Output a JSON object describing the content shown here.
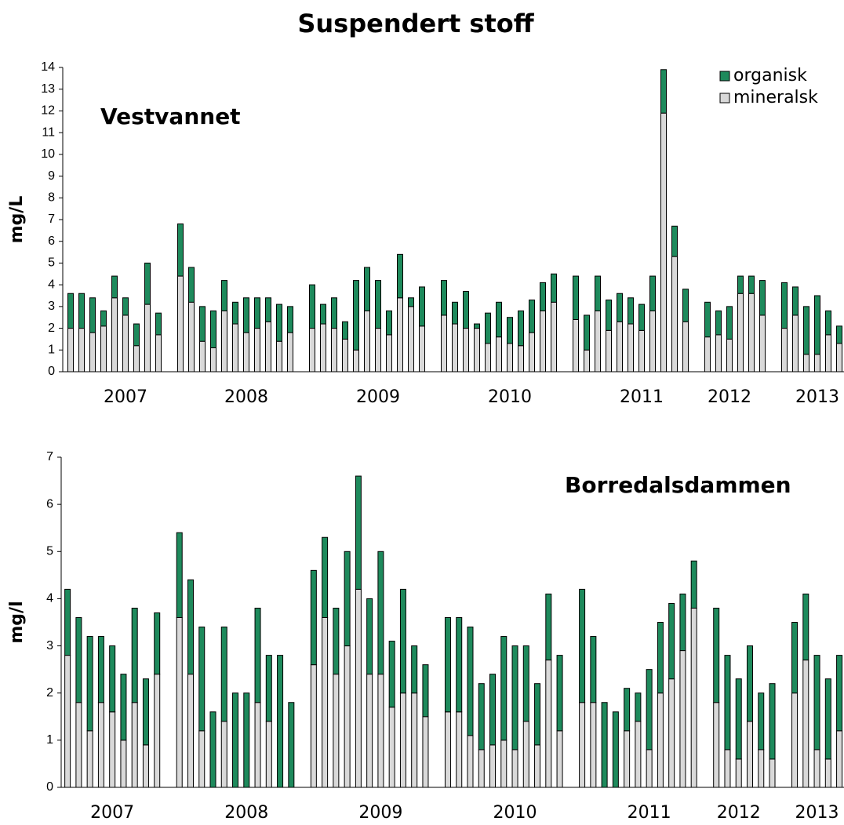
{
  "title": "Suspendert stoff",
  "chart_data": [
    {
      "type": "bar",
      "stacked": true,
      "annotation": "Vestvannet",
      "ylabel": "mg/L",
      "legend": "upper right",
      "ylim": [
        0,
        14
      ],
      "yticks": [
        0,
        1,
        2,
        3,
        4,
        5,
        6,
        7,
        8,
        9,
        10,
        11,
        12,
        13,
        14
      ],
      "categories": [
        null,
        null,
        null,
        null,
        null,
        "2007",
        null,
        null,
        null,
        null,
        null,
        null,
        null,
        null,
        null,
        null,
        "2008",
        null,
        null,
        null,
        null,
        null,
        null,
        null,
        null,
        null,
        null,
        null,
        "2009",
        null,
        null,
        null,
        null,
        null,
        null,
        null,
        null,
        null,
        null,
        null,
        "2010",
        null,
        null,
        null,
        null,
        null,
        null,
        null,
        null,
        null,
        null,
        null,
        "2011",
        null,
        null,
        null,
        null,
        null,
        null,
        null,
        "2012",
        null,
        null,
        null,
        null,
        null,
        null,
        null,
        "2013",
        null,
        null
      ],
      "series": [
        {
          "name": "mineralsk",
          "color": "#d9d9d9",
          "values": [
            2.0,
            2.0,
            1.8,
            2.1,
            3.4,
            2.6,
            1.2,
            3.1,
            1.7,
            null,
            4.4,
            3.2,
            1.4,
            1.1,
            2.8,
            2.2,
            1.8,
            2.0,
            2.3,
            1.4,
            1.8,
            null,
            2.0,
            2.2,
            2.0,
            1.5,
            1.0,
            2.8,
            2.0,
            1.7,
            3.4,
            3.0,
            2.1,
            null,
            2.6,
            2.2,
            2.0,
            2.0,
            1.3,
            1.6,
            1.3,
            1.2,
            1.8,
            2.8,
            3.2,
            null,
            2.4,
            1.0,
            2.8,
            1.9,
            2.3,
            2.2,
            1.9,
            2.8,
            11.9,
            5.3,
            2.3,
            null,
            1.6,
            1.7,
            1.5,
            3.6,
            3.6,
            2.6,
            null,
            2.0,
            2.6,
            0.8,
            0.8,
            1.7,
            1.3
          ]
        },
        {
          "name": "organisk",
          "color": "#1e8a5c",
          "values": [
            1.6,
            1.6,
            1.6,
            0.7,
            1.0,
            0.8,
            1.0,
            1.9,
            1.0,
            null,
            2.4,
            1.6,
            1.6,
            1.7,
            1.4,
            1.0,
            1.6,
            1.4,
            1.1,
            1.7,
            1.2,
            null,
            2.0,
            0.9,
            1.4,
            0.8,
            3.2,
            2.0,
            2.2,
            1.1,
            2.0,
            0.4,
            1.8,
            null,
            1.6,
            1.0,
            1.7,
            0.2,
            1.4,
            1.6,
            1.2,
            1.6,
            1.5,
            1.3,
            1.3,
            null,
            2.0,
            1.6,
            1.6,
            1.4,
            1.3,
            1.2,
            1.2,
            1.6,
            2.0,
            1.4,
            1.5,
            null,
            1.6,
            1.1,
            1.5,
            0.8,
            0.8,
            1.6,
            null,
            2.1,
            1.3,
            2.2,
            2.7,
            1.1,
            0.8
          ]
        }
      ]
    },
    {
      "type": "bar",
      "stacked": true,
      "annotation": "Borredalsdammen",
      "ylabel": "mg/l",
      "legend": false,
      "ylim": [
        0,
        7
      ],
      "yticks": [
        0,
        1,
        2,
        3,
        4,
        5,
        6,
        7
      ],
      "categories": [
        null,
        null,
        null,
        null,
        "2007",
        null,
        null,
        null,
        null,
        null,
        null,
        null,
        null,
        null,
        null,
        null,
        "2008",
        null,
        null,
        null,
        null,
        null,
        null,
        null,
        null,
        null,
        null,
        null,
        "2009",
        null,
        null,
        null,
        null,
        null,
        null,
        null,
        null,
        null,
        null,
        null,
        "2010",
        null,
        null,
        null,
        null,
        null,
        null,
        null,
        null,
        null,
        null,
        null,
        "2011",
        null,
        null,
        null,
        null,
        null,
        null,
        null,
        "2012",
        null,
        null,
        null,
        null,
        null,
        null,
        "2013",
        null,
        null
      ],
      "series": [
        {
          "color": "#d9d9d9",
          "values": [
            2.8,
            1.8,
            1.2,
            1.8,
            1.6,
            1.0,
            1.8,
            0.9,
            2.4,
            null,
            3.6,
            2.4,
            1.2,
            0,
            1.4,
            0,
            0,
            1.8,
            1.4,
            0,
            0,
            null,
            2.6,
            3.6,
            2.4,
            3.0,
            4.2,
            2.4,
            2.4,
            1.7,
            2.0,
            2.0,
            1.5,
            null,
            1.6,
            1.6,
            1.1,
            0.8,
            0.9,
            1.0,
            0.8,
            1.4,
            0.9,
            2.7,
            1.2,
            null,
            1.8,
            1.8,
            0,
            0,
            1.2,
            1.4,
            0.8,
            2.0,
            2.3,
            2.9,
            3.8,
            null,
            1.8,
            0.8,
            0.6,
            1.4,
            0.8,
            0.6,
            null,
            2.0,
            2.7,
            0.8,
            0.6,
            1.2
          ]
        },
        {
          "color": "#1e8a5c",
          "values": [
            1.4,
            1.8,
            2.0,
            1.4,
            1.4,
            1.4,
            2.0,
            1.4,
            1.3,
            null,
            1.8,
            2.0,
            2.2,
            1.6,
            2.0,
            2.0,
            2.0,
            2.0,
            1.4,
            2.8,
            1.8,
            null,
            2.0,
            1.7,
            1.4,
            2.0,
            2.4,
            1.6,
            2.6,
            1.4,
            2.2,
            1.0,
            1.1,
            null,
            2.0,
            2.0,
            2.3,
            1.4,
            1.5,
            2.2,
            2.2,
            1.6,
            1.3,
            1.4,
            1.6,
            null,
            2.4,
            1.4,
            1.8,
            1.6,
            0.9,
            0.6,
            1.7,
            1.5,
            1.6,
            1.2,
            1.0,
            null,
            2.0,
            2.0,
            1.7,
            1.6,
            1.2,
            1.6,
            null,
            1.5,
            1.4,
            2.0,
            1.7,
            1.6
          ]
        }
      ]
    }
  ]
}
